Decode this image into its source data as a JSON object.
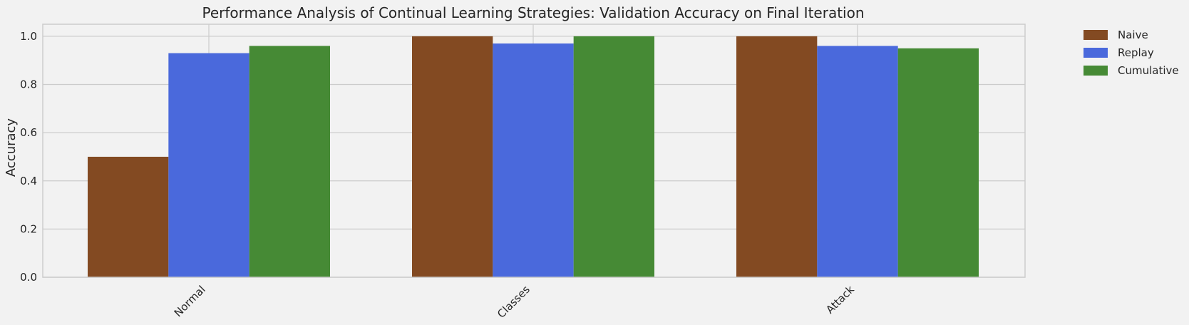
{
  "chart_data": {
    "type": "bar",
    "title": "Performance Analysis of Continual Learning Strategies: Validation Accuracy on Final Iteration",
    "xlabel": "",
    "ylabel": "Accuracy",
    "categories": [
      "Normal",
      "Classes",
      "Attack"
    ],
    "series": [
      {
        "name": "Naive",
        "values": [
          0.5,
          1.0,
          1.0
        ],
        "color": "#834a22"
      },
      {
        "name": "Replay",
        "values": [
          0.93,
          0.97,
          0.96
        ],
        "color": "#4a69dc"
      },
      {
        "name": "Cumulative",
        "values": [
          0.96,
          1.0,
          0.95
        ],
        "color": "#468a35"
      }
    ],
    "ylim": [
      0,
      1.05
    ],
    "yticks": [
      0.0,
      0.2,
      0.4,
      0.6,
      0.8,
      1.0
    ],
    "ytick_labels": [
      "0.0",
      "0.2",
      "0.4",
      "0.6",
      "0.8",
      "1.0"
    ],
    "grid": true,
    "legend_position": "outside-top-right"
  }
}
